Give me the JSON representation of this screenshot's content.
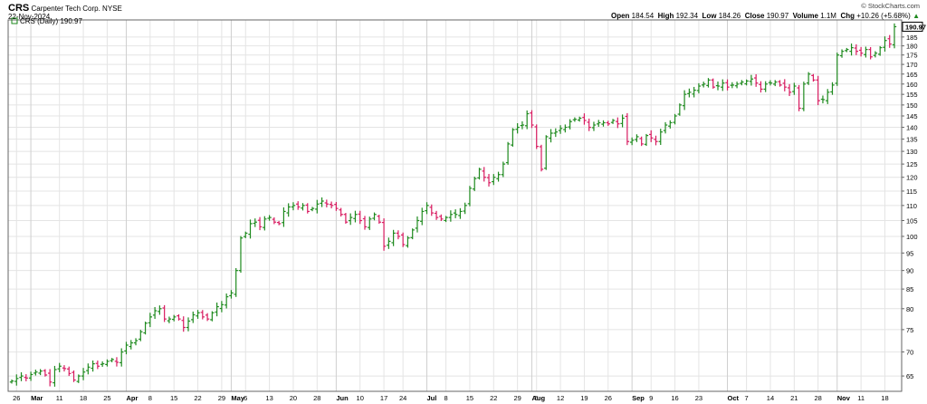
{
  "header": {
    "symbol": "CRS",
    "company": "Carpenter Tech Corp.",
    "exchange": "NYSE",
    "date": "22-Nov-2024",
    "copyright": "© StockCharts.com",
    "open_label": "Open",
    "open_value": "184.54",
    "high_label": "High",
    "high_value": "192.34",
    "low_label": "Low",
    "low_value": "184.26",
    "close_label": "Close",
    "close_value": "190.97",
    "volume_label": "Volume",
    "volume_value": "1.1M",
    "chg_label": "Chg",
    "chg_value": "+10.26 (+5.68%)",
    "chg_arrow": "▲"
  },
  "legend": {
    "text": "CRS (Daily) 190.97"
  },
  "colors": {
    "up": "#1e8a1e",
    "down": "#d81b60",
    "grid": "#e4e4e4",
    "axis": "#666666"
  },
  "chart_data": {
    "type": "ohlc",
    "title": "CRS (Daily) 190.97",
    "last_price_label": "190.97",
    "y_scale": "log",
    "ylim": [
      62,
      195
    ],
    "y_ticks": [
      65,
      70,
      75,
      80,
      85,
      90,
      95,
      100,
      105,
      110,
      115,
      120,
      125,
      130,
      135,
      140,
      145,
      150,
      155,
      160,
      165,
      170,
      175,
      180,
      185
    ],
    "x_ticks": [
      {
        "label": "26",
        "index": 1
      },
      {
        "label": "Mar",
        "index": 4,
        "bold": true
      },
      {
        "label": "11",
        "index": 10
      },
      {
        "label": "18",
        "index": 15
      },
      {
        "label": "25",
        "index": 20
      },
      {
        "label": "Apr",
        "index": 24,
        "bold": true
      },
      {
        "label": "8",
        "index": 29
      },
      {
        "label": "15",
        "index": 34
      },
      {
        "label": "22",
        "index": 39
      },
      {
        "label": "29",
        "index": 44
      },
      {
        "label": "May",
        "index": 46,
        "bold": true
      },
      {
        "label": "6",
        "index": 49
      },
      {
        "label": "13",
        "index": 54
      },
      {
        "label": "20",
        "index": 59
      },
      {
        "label": "28",
        "index": 64
      },
      {
        "label": "Jun",
        "index": 68,
        "bold": true
      },
      {
        "label": "10",
        "index": 73
      },
      {
        "label": "17",
        "index": 78
      },
      {
        "label": "24",
        "index": 82
      },
      {
        "label": "Jul",
        "index": 87,
        "bold": true
      },
      {
        "label": "8",
        "index": 91
      },
      {
        "label": "15",
        "index": 96
      },
      {
        "label": "22",
        "index": 101
      },
      {
        "label": "29",
        "index": 106
      },
      {
        "label": "Aug",
        "index": 109,
        "bold": true
      },
      {
        "label": "5",
        "index": 110
      },
      {
        "label": "12",
        "index": 115
      },
      {
        "label": "19",
        "index": 120
      },
      {
        "label": "26",
        "index": 125
      },
      {
        "label": "Sep",
        "index": 130,
        "bold": true
      },
      {
        "label": "9",
        "index": 134
      },
      {
        "label": "16",
        "index": 139
      },
      {
        "label": "23",
        "index": 144
      },
      {
        "label": "Oct",
        "index": 150,
        "bold": true
      },
      {
        "label": "7",
        "index": 154
      },
      {
        "label": "14",
        "index": 159
      },
      {
        "label": "21",
        "index": 164
      },
      {
        "label": "28",
        "index": 169
      },
      {
        "label": "Nov",
        "index": 173,
        "bold": true
      },
      {
        "label": "11",
        "index": 178
      },
      {
        "label": "18",
        "index": 183
      }
    ],
    "closes": [
      64.0,
      64.5,
      65.0,
      64.6,
      65.3,
      65.8,
      66.0,
      65.2,
      63.8,
      66.3,
      67.0,
      66.5,
      65.5,
      64.2,
      65.0,
      65.8,
      66.8,
      67.5,
      67.0,
      67.5,
      68.0,
      68.4,
      67.8,
      70.0,
      71.5,
      72.0,
      72.5,
      74.5,
      76.5,
      78.0,
      79.5,
      80.0,
      77.5,
      77.5,
      78.0,
      77.5,
      75.5,
      77.0,
      78.5,
      79.0,
      78.0,
      77.5,
      79.0,
      80.5,
      81.0,
      83.0,
      84.0,
      90.0,
      99.5,
      101.0,
      104.0,
      104.5,
      103.0,
      105.5,
      106.0,
      104.5,
      104.0,
      108.0,
      109.5,
      110.0,
      109.5,
      110.0,
      108.0,
      109.0,
      110.5,
      111.5,
      110.5,
      110.0,
      109.0,
      107.0,
      104.5,
      106.0,
      107.0,
      105.0,
      103.0,
      105.5,
      107.0,
      104.5,
      97.0,
      98.5,
      101.0,
      100.0,
      97.5,
      99.5,
      102.0,
      105.0,
      108.0,
      110.0,
      107.5,
      106.0,
      105.5,
      106.0,
      107.0,
      107.0,
      108.0,
      110.0,
      116.0,
      119.5,
      123.0,
      120.0,
      118.0,
      120.0,
      121.0,
      125.0,
      133.0,
      139.0,
      140.0,
      141.0,
      146.0,
      141.0,
      132.0,
      123.0,
      136.0,
      137.5,
      138.0,
      139.5,
      140.0,
      142.5,
      143.5,
      144.0,
      143.0,
      140.0,
      141.0,
      142.0,
      142.0,
      141.5,
      143.0,
      141.5,
      144.0,
      134.0,
      134.5,
      136.0,
      133.0,
      136.5,
      135.5,
      134.0,
      138.0,
      141.0,
      142.0,
      145.0,
      150.0,
      155.0,
      156.0,
      157.0,
      159.0,
      160.0,
      162.0,
      158.5,
      159.0,
      160.5,
      158.5,
      159.5,
      160.0,
      161.0,
      161.5,
      162.5,
      160.5,
      157.5,
      160.0,
      160.5,
      161.0,
      159.5,
      158.5,
      156.0,
      159.0,
      148.5,
      160.0,
      165.0,
      162.0,
      152.0,
      152.5,
      156.0,
      159.5,
      175.0,
      177.0,
      178.0,
      179.0,
      177.0,
      176.0,
      178.0,
      174.0,
      176.0,
      179.0,
      183.0,
      181.0,
      190.97
    ]
  }
}
